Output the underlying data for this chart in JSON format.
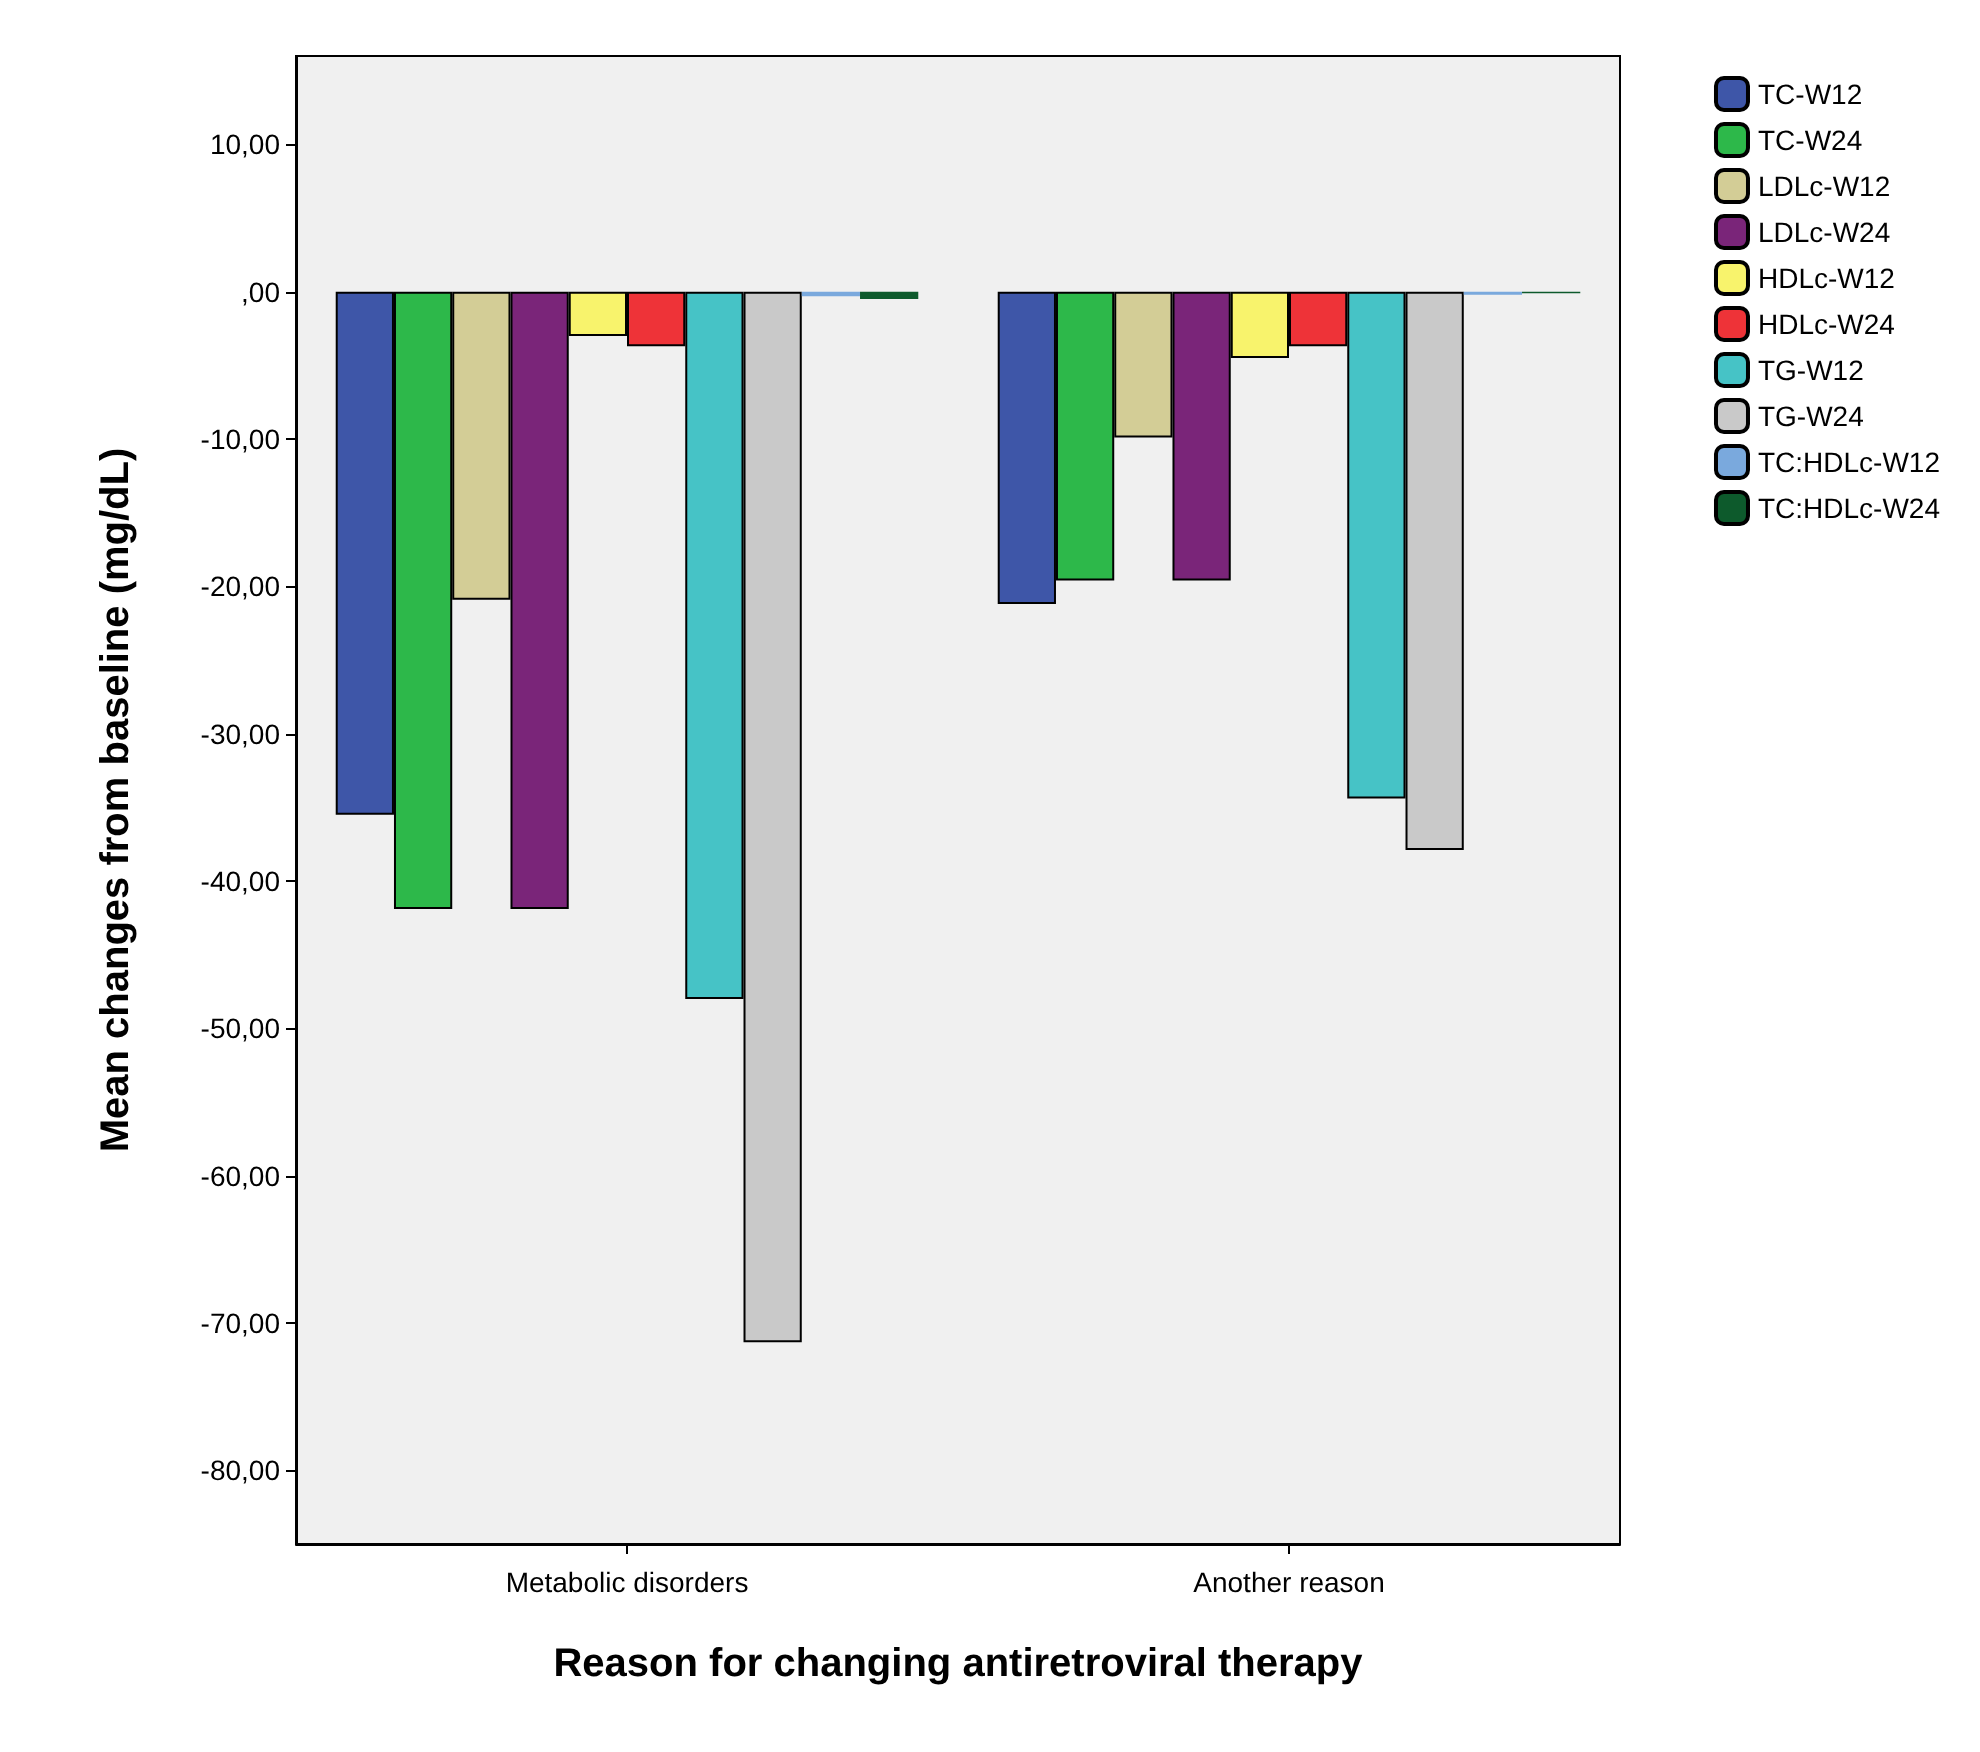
{
  "chart_data": {
    "type": "bar",
    "xlabel": "Reason for changing antiretroviral therapy",
    "ylabel": "Mean changes from baseline (mg/dL)",
    "categories": [
      "Metabolic disorders",
      "Another reason"
    ],
    "series": [
      {
        "name": "TC-W12",
        "color": "#3e56a8",
        "values": [
          -35.5,
          -21.2
        ]
      },
      {
        "name": "TC-W24",
        "color": "#2db84a",
        "values": [
          -41.9,
          -19.6
        ]
      },
      {
        "name": "LDLc-W12",
        "color": "#d3cd96",
        "values": [
          -20.9,
          -9.9
        ]
      },
      {
        "name": "LDLc-W24",
        "color": "#7a2579",
        "values": [
          -41.9,
          -19.6
        ]
      },
      {
        "name": "HDLc-W12",
        "color": "#f8f36c",
        "values": [
          -3.0,
          -4.5
        ]
      },
      {
        "name": "HDLc-W24",
        "color": "#ee3338",
        "values": [
          -3.7,
          -3.7
        ]
      },
      {
        "name": "TG-W12",
        "color": "#46c3c6",
        "values": [
          -48.0,
          -34.4
        ]
      },
      {
        "name": "TG-W24",
        "color": "#c9c9c9",
        "values": [
          -71.3,
          -37.9
        ]
      },
      {
        "name": "TC:HDLc-W12",
        "color": "#7aa9dd",
        "values": [
          -0.3,
          -0.2
        ]
      },
      {
        "name": "TC:HDLc-W24",
        "color": "#0d5a2c",
        "values": [
          -0.5,
          -0.1
        ]
      }
    ],
    "ylim": [
      -85,
      16
    ],
    "yticks": [
      {
        "value": 10,
        "label": "10,00"
      },
      {
        "value": 0,
        "label": ",00"
      },
      {
        "value": -10,
        "label": "-10,00"
      },
      {
        "value": -20,
        "label": "-20,00"
      },
      {
        "value": -30,
        "label": "-30,00"
      },
      {
        "value": -40,
        "label": "-40,00"
      },
      {
        "value": -50,
        "label": "-50,00"
      },
      {
        "value": -60,
        "label": "-60,00"
      },
      {
        "value": -70,
        "label": "-70,00"
      },
      {
        "value": -80,
        "label": "-80,00"
      }
    ],
    "grid": false,
    "legend": "top right"
  }
}
